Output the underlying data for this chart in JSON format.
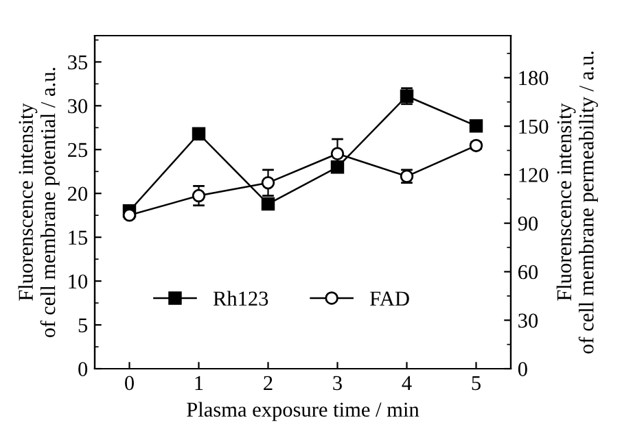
{
  "chart_data": {
    "type": "line",
    "xlabel": "Plasma exposure time / min",
    "ylabel": "Fluorenscence intensity\nof cell membrane potential / a.u.",
    "y2label": "Fluorenscence intensity\nof cell membrane permeability / a.u.",
    "x": [
      0,
      1,
      2,
      3,
      4,
      5
    ],
    "series": [
      {
        "name": "Rh123",
        "color": "#000000",
        "marker": "square",
        "values": [
          18.0,
          26.8,
          18.8,
          23.0,
          31.1,
          27.7
        ],
        "errors": [
          0.4,
          null,
          0.3,
          null,
          0.9,
          null
        ]
      },
      {
        "name": "FAD",
        "color": "#000000",
        "marker": "circle",
        "axis": "y2",
        "values": [
          95,
          107,
          115,
          133,
          119,
          138
        ],
        "errors": [
          2,
          6,
          8,
          9,
          4,
          2
        ]
      }
    ],
    "xlim": [
      -0.5,
      5.5
    ],
    "xticks": [
      0,
      1,
      2,
      3,
      4,
      5
    ],
    "ylim": [
      0,
      38
    ],
    "yticks": [
      0,
      5,
      10,
      15,
      20,
      25,
      30,
      35
    ],
    "y2lim": [
      0,
      206
    ],
    "y2ticks": [
      0,
      30,
      60,
      90,
      120,
      150,
      180
    ],
    "line_style": "solid",
    "grid": false,
    "legend": "bottom"
  }
}
